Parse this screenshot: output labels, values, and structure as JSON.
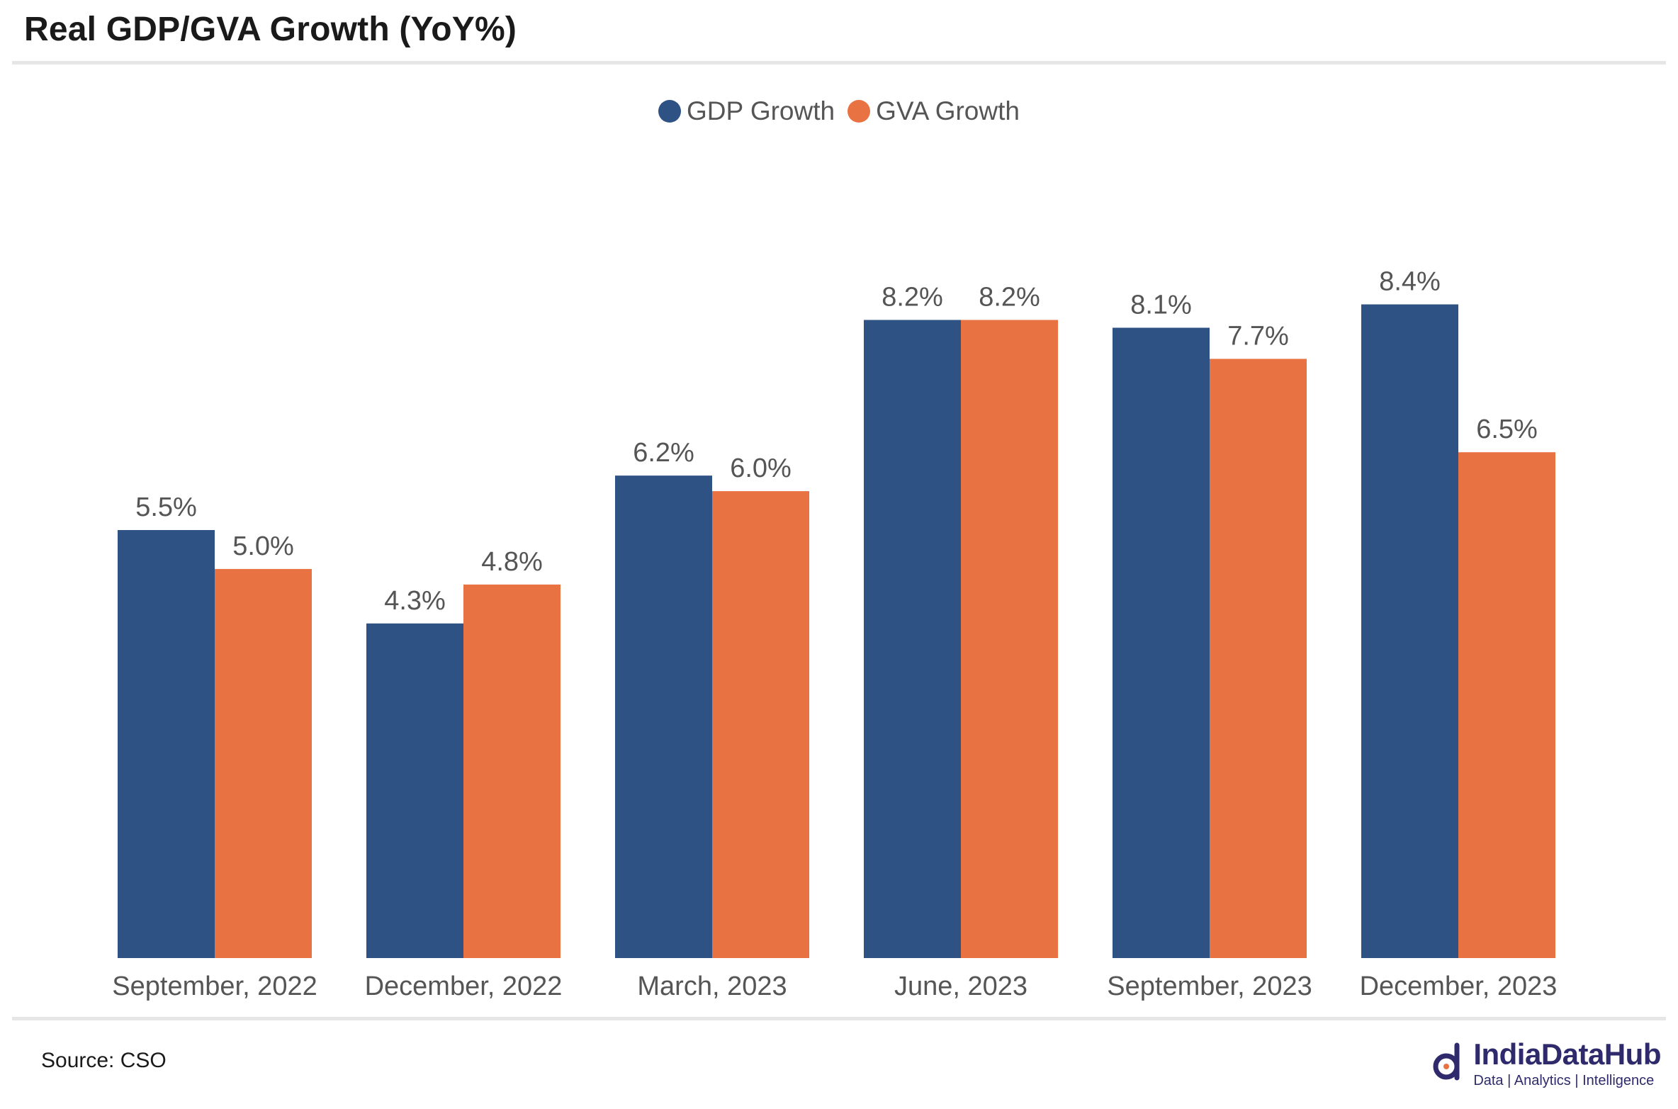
{
  "title": "Real GDP/GVA Growth (YoY%)",
  "source": "Source: CSO",
  "logo": {
    "name": "IndiaDataHub",
    "tagline": "Data | Analytics | Intelligence"
  },
  "colors": {
    "gdp": "#2e5283",
    "gva": "#e97242",
    "label": "#555555"
  },
  "chart_data": {
    "type": "bar",
    "title": "Real GDP/GVA Growth (YoY%)",
    "categories": [
      "September, 2022",
      "December, 2022",
      "March, 2023",
      "June, 2023",
      "September, 2023",
      "December, 2023"
    ],
    "series": [
      {
        "name": "GDP Growth",
        "values": [
          5.5,
          4.3,
          6.2,
          8.2,
          8.1,
          8.4
        ],
        "labels": [
          "5.5%",
          "4.3%",
          "6.2%",
          "8.2%",
          "8.1%",
          "8.4%"
        ],
        "color": "#2e5283"
      },
      {
        "name": "GVA Growth",
        "values": [
          5.0,
          4.8,
          6.0,
          8.2,
          7.7,
          6.5
        ],
        "labels": [
          "5.0%",
          "4.8%",
          "6.0%",
          "8.2%",
          "7.7%",
          "6.5%"
        ],
        "color": "#e97242"
      }
    ],
    "ylim": [
      0,
      10.9
    ],
    "legend": "top-center",
    "grid": false,
    "xlabel": "",
    "ylabel": ""
  }
}
